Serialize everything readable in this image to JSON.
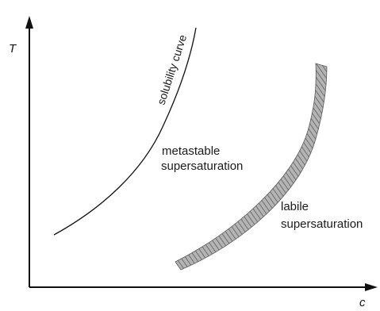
{
  "axes": {
    "y_label": "T",
    "x_label": "c"
  },
  "curves": {
    "solubility": {
      "label": "solubility curve",
      "color": "#111111"
    },
    "supersolubility": {
      "fill_color": "#9a9a9a",
      "edge_color": "#5a5a5a"
    }
  },
  "regions": {
    "metastable": {
      "line1": "metastable",
      "line2": "supersaturation"
    },
    "labile": {
      "line1": "labile",
      "line2": "supersaturation"
    }
  }
}
